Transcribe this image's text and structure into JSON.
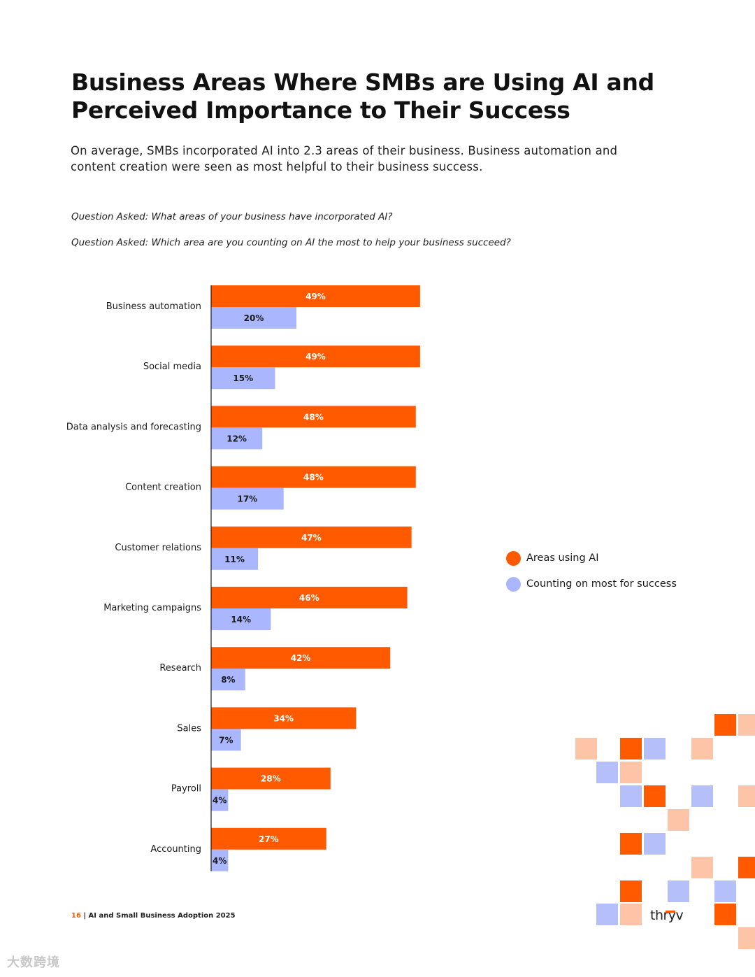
{
  "page": {
    "title_line1": "Business Areas Where SMBs are Using AI and",
    "title_line2": "Perceived Importance to Their Success",
    "subtitle_line1": "On average, SMBs incorporated AI into 2.3 areas of their business. Business automation and",
    "subtitle_line2": "content creation were seen as most helpful to their business success.",
    "question1": "Question Asked: What areas of your business have incorporated AI?",
    "question2": "Question Asked: Which area are you counting on AI the most to help your business succeed?"
  },
  "chart_data": {
    "type": "bar",
    "orientation": "horizontal",
    "categories": [
      "Business automation",
      "Social media",
      "Data analysis and forecasting",
      "Content creation",
      "Customer relations",
      "Marketing campaigns",
      "Research",
      "Sales",
      "Payroll",
      "Accounting"
    ],
    "series": [
      {
        "name": "Areas using AI",
        "color": "#ff5a00",
        "values": [
          49,
          49,
          48,
          48,
          47,
          46,
          42,
          34,
          28,
          27
        ]
      },
      {
        "name": "Counting on most for success",
        "color": "#aab7ff",
        "values": [
          20,
          15,
          12,
          17,
          11,
          14,
          8,
          7,
          4,
          4
        ]
      }
    ],
    "value_suffix": "%",
    "xlim": [
      0,
      100
    ],
    "legend": "right"
  },
  "legend": {
    "items": [
      {
        "label": "Areas using AI",
        "color": "#ff5a00"
      },
      {
        "label": "Counting on most for success",
        "color": "#aab7ff"
      }
    ]
  },
  "footer": {
    "page_number": "16",
    "separator": " | ",
    "report_title": "AI and Small Business Adoption 2025"
  },
  "brand": {
    "logo_text": "thryv",
    "accent_color": "#ff5a00",
    "light_orange": "#fdc4a8",
    "light_blue": "#b5c0fb"
  },
  "watermark": {
    "text": "大数跨境"
  }
}
